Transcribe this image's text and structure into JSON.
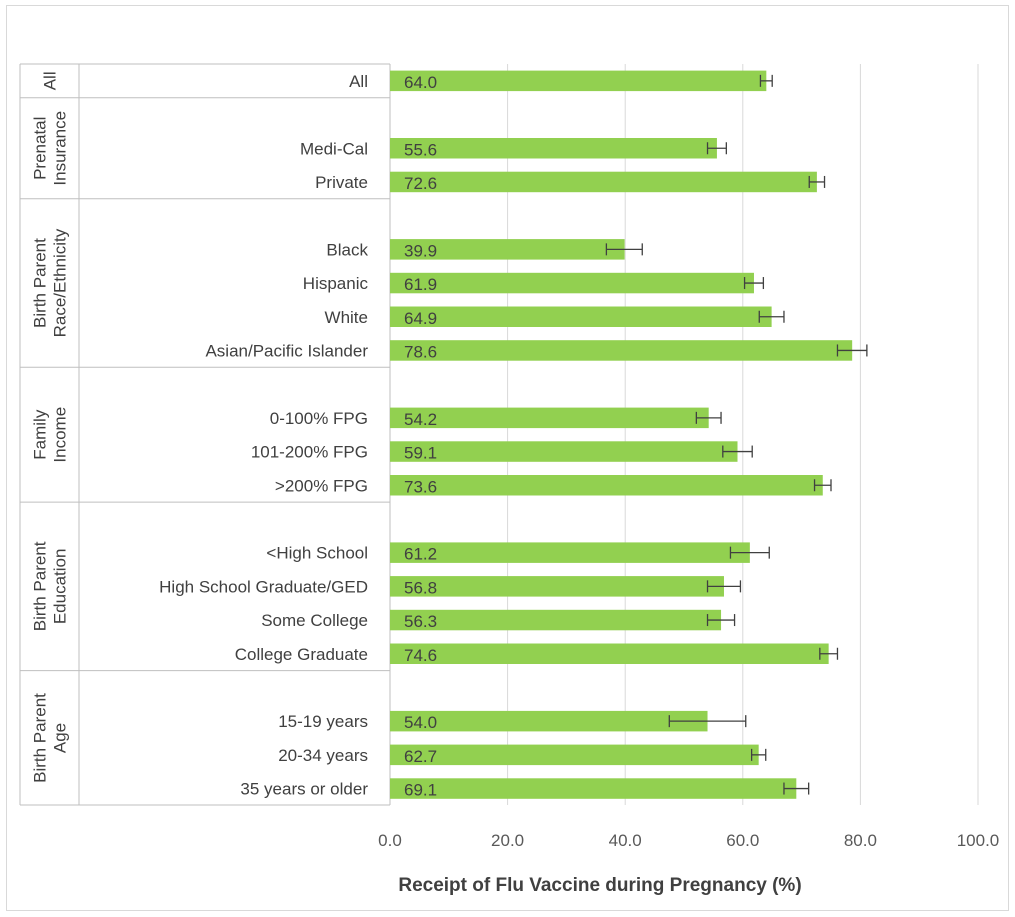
{
  "chart_data": {
    "type": "bar",
    "orientation": "horizontal",
    "title": "",
    "xlabel": "Receipt of Flu Vaccine during Pregnancy (%)",
    "ylabel": "",
    "xlim": [
      0,
      100
    ],
    "xticks": [
      "0.0",
      "20.0",
      "40.0",
      "60.0",
      "80.0",
      "100.0"
    ],
    "grid": true,
    "bar_color": "#92d050",
    "error_bar_color": "#404040",
    "groups": [
      {
        "name_lines": [
          "All"
        ],
        "rows": [
          {
            "label": "All",
            "value": 64.0,
            "value_label": "64.0",
            "ci": [
              63.0,
              65.0
            ]
          }
        ]
      },
      {
        "name_lines": [
          "Prenatal",
          "Insurance"
        ],
        "rows": [
          {
            "label": "Medi-Cal",
            "value": 55.6,
            "value_label": "55.6",
            "ci": [
              54.0,
              57.2
            ]
          },
          {
            "label": "Private",
            "value": 72.6,
            "value_label": "72.6",
            "ci": [
              71.3,
              73.9
            ]
          }
        ]
      },
      {
        "name_lines": [
          "Birth Parent",
          "Race/Ethnicity"
        ],
        "rows": [
          {
            "label": "Black",
            "value": 39.9,
            "value_label": "39.9",
            "ci": [
              36.8,
              42.9
            ]
          },
          {
            "label": "Hispanic",
            "value": 61.9,
            "value_label": "61.9",
            "ci": [
              60.3,
              63.5
            ]
          },
          {
            "label": "White",
            "value": 64.9,
            "value_label": "64.9",
            "ci": [
              62.8,
              67.0
            ]
          },
          {
            "label": "Asian/Pacific Islander",
            "value": 78.6,
            "value_label": "78.6",
            "ci": [
              76.1,
              81.1
            ]
          }
        ]
      },
      {
        "name_lines": [
          "Family",
          "Income"
        ],
        "rows": [
          {
            "label": "0-100% FPG",
            "value": 54.2,
            "value_label": "54.2",
            "ci": [
              52.1,
              56.3
            ]
          },
          {
            "label": "101-200% FPG",
            "value": 59.1,
            "value_label": "59.1",
            "ci": [
              56.6,
              61.6
            ]
          },
          {
            "label": ">200% FPG",
            "value": 73.6,
            "value_label": "73.6",
            "ci": [
              72.2,
              75.0
            ]
          }
        ]
      },
      {
        "name_lines": [
          "Birth Parent",
          "Education"
        ],
        "rows": [
          {
            "label": "<High School",
            "value": 61.2,
            "value_label": "61.2",
            "ci": [
              57.9,
              64.5
            ]
          },
          {
            "label": "High School Graduate/GED",
            "value": 56.8,
            "value_label": "56.8",
            "ci": [
              54.0,
              59.6
            ]
          },
          {
            "label": "Some College",
            "value": 56.3,
            "value_label": "56.3",
            "ci": [
              54.0,
              58.6
            ]
          },
          {
            "label": "College Graduate",
            "value": 74.6,
            "value_label": "74.6",
            "ci": [
              73.1,
              76.1
            ]
          }
        ]
      },
      {
        "name_lines": [
          "Birth Parent",
          "Age"
        ],
        "rows": [
          {
            "label": "15-19 years",
            "value": 54.0,
            "value_label": "54.0",
            "ci": [
              47.5,
              60.5
            ]
          },
          {
            "label": "20-34 years",
            "value": 62.7,
            "value_label": "62.7",
            "ci": [
              61.5,
              63.9
            ]
          },
          {
            "label": "35 years or older",
            "value": 69.1,
            "value_label": "69.1",
            "ci": [
              67.0,
              71.2
            ]
          }
        ]
      }
    ]
  }
}
